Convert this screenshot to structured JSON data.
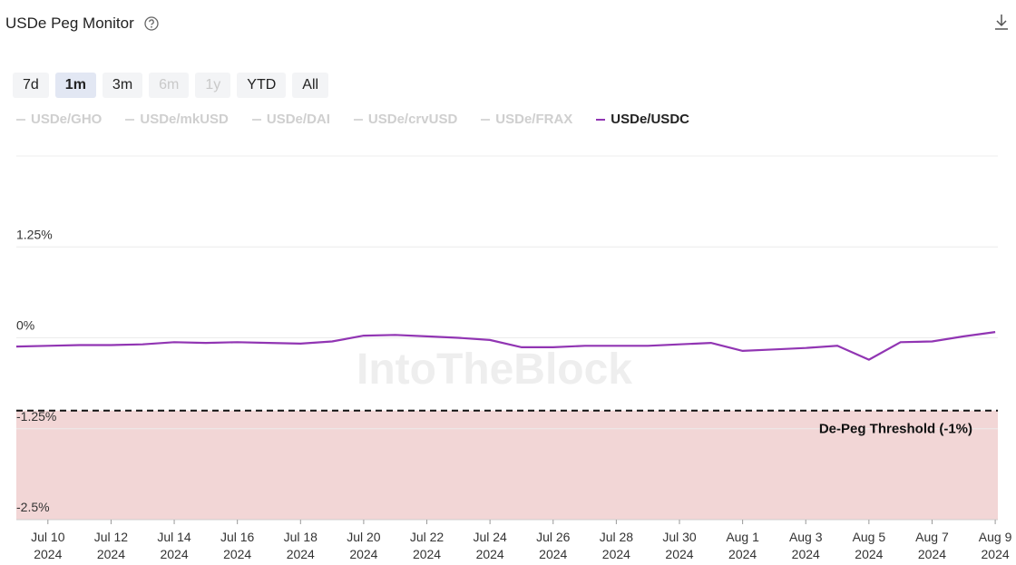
{
  "header": {
    "title": "USDe Peg Monitor"
  },
  "controls": {
    "ranges": [
      "7d",
      "1m",
      "3m",
      "6m",
      "1y",
      "YTD",
      "All"
    ],
    "active": "1m",
    "disabled": [
      "6m",
      "1y"
    ]
  },
  "watermark": "IntoTheBlock",
  "chart_data": {
    "type": "line",
    "x": [
      "2024-07-09",
      "2024-07-10",
      "2024-07-11",
      "2024-07-12",
      "2024-07-13",
      "2024-07-14",
      "2024-07-15",
      "2024-07-16",
      "2024-07-17",
      "2024-07-18",
      "2024-07-19",
      "2024-07-20",
      "2024-07-21",
      "2024-07-22",
      "2024-07-23",
      "2024-07-24",
      "2024-07-25",
      "2024-07-26",
      "2024-07-27",
      "2024-07-28",
      "2024-07-29",
      "2024-07-30",
      "2024-07-31",
      "2024-08-01",
      "2024-08-02",
      "2024-08-03",
      "2024-08-04",
      "2024-08-05",
      "2024-08-06",
      "2024-08-07",
      "2024-08-08",
      "2024-08-09"
    ],
    "series": [
      {
        "name": "USDe/GHO",
        "visible": false
      },
      {
        "name": "USDe/mkUSD",
        "visible": false
      },
      {
        "name": "USDe/DAI",
        "visible": false
      },
      {
        "name": "USDe/crvUSD",
        "visible": false
      },
      {
        "name": "USDe/FRAX",
        "visible": false
      },
      {
        "name": "USDe/USDC",
        "visible": true,
        "color": "#9135b3",
        "values": [
          -0.12,
          -0.11,
          -0.1,
          -0.1,
          -0.09,
          -0.06,
          -0.07,
          -0.06,
          -0.07,
          -0.08,
          -0.05,
          0.03,
          0.04,
          0.02,
          0.0,
          -0.03,
          -0.13,
          -0.13,
          -0.11,
          -0.11,
          -0.11,
          -0.09,
          -0.07,
          -0.18,
          -0.16,
          -0.14,
          -0.11,
          -0.3,
          -0.06,
          -0.05,
          0.02,
          0.08
        ]
      }
    ],
    "xlim": [
      "2024-07-09",
      "2024-08-09T02:00"
    ],
    "xticks": [
      {
        "value": "2024-07-10",
        "label": "Jul 10 2024"
      },
      {
        "value": "2024-07-12",
        "label": "Jul 12 2024"
      },
      {
        "value": "2024-07-14",
        "label": "Jul 14 2024"
      },
      {
        "value": "2024-07-16",
        "label": "Jul 16 2024"
      },
      {
        "value": "2024-07-18",
        "label": "Jul 18 2024"
      },
      {
        "value": "2024-07-20",
        "label": "Jul 20 2024"
      },
      {
        "value": "2024-07-22",
        "label": "Jul 22 2024"
      },
      {
        "value": "2024-07-24",
        "label": "Jul 24 2024"
      },
      {
        "value": "2024-07-26",
        "label": "Jul 26 2024"
      },
      {
        "value": "2024-07-28",
        "label": "Jul 28 2024"
      },
      {
        "value": "2024-07-30",
        "label": "Jul 30 2024"
      },
      {
        "value": "2024-08-01",
        "label": "Aug 1 2024"
      },
      {
        "value": "2024-08-03",
        "label": "Aug 3 2024"
      },
      {
        "value": "2024-08-05",
        "label": "Aug 5 2024"
      },
      {
        "value": "2024-08-07",
        "label": "Aug 7 2024"
      },
      {
        "value": "2024-08-09",
        "label": "Aug 9 2024"
      }
    ],
    "ylim": [
      -2.5,
      2.5
    ],
    "yticks": [
      {
        "value": 2.5,
        "label": null
      },
      {
        "value": 1.25,
        "label": "1.25%"
      },
      {
        "value": 0,
        "label": "0%"
      },
      {
        "value": -1.25,
        "label": "-1.25%"
      },
      {
        "value": -2.5,
        "label": "-2.5%"
      }
    ],
    "grid": true,
    "threshold": {
      "value": -1,
      "label": "De-Peg Threshold (-1%)",
      "color": "#f2d6d6"
    }
  }
}
